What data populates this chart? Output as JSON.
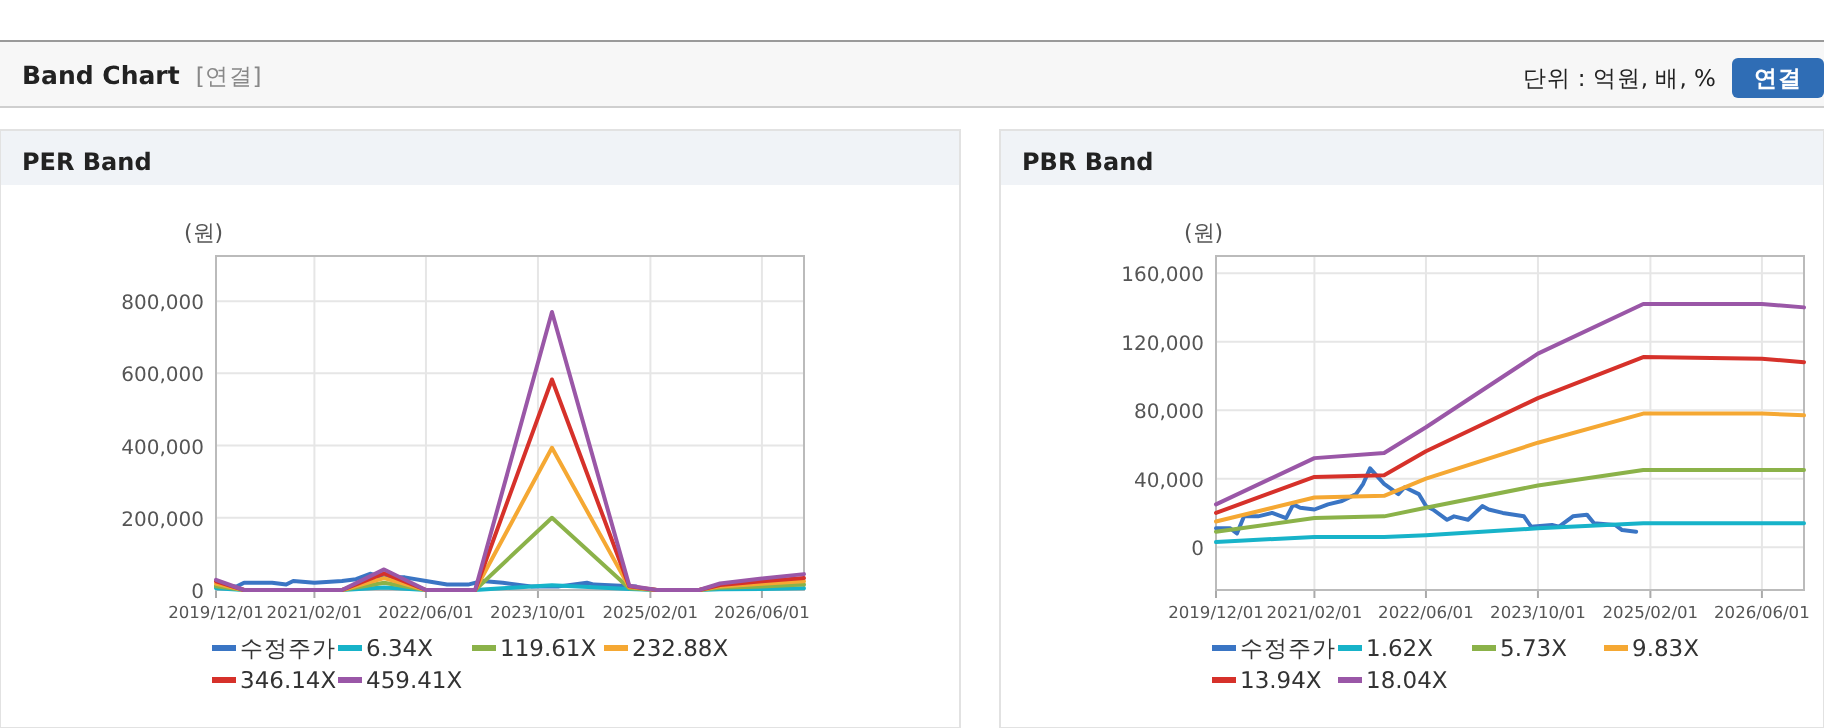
{
  "chart_data": [
    {
      "type": "other",
      "title": "Band Chart",
      "annotations": [
        "[연결]",
        "단위 : 억원, 배, %",
        "연결"
      ]
    },
    {
      "type": "line",
      "title": "PER Band",
      "ylabel": "(원)",
      "grid": true,
      "legend": "bottom",
      "x": [
        "2019-12",
        "2020-04",
        "2020-12",
        "2021-06",
        "2021-12",
        "2022-06",
        "2022-09",
        "2023-01",
        "2023-12",
        "2024-11",
        "2025-03",
        "2025-09",
        "2025-12",
        "2026-06",
        "2026-12"
      ],
      "xlim": [
        "2019-12-01",
        "2026-12-01"
      ],
      "xticks": [
        {
          "value": "2019-12-01",
          "label": "2019/12/01"
        },
        {
          "value": "2021-02-01",
          "label": "2021/02/01"
        },
        {
          "value": "2022-06-01",
          "label": "2022/06/01"
        },
        {
          "value": "2023-10-01",
          "label": "2023/10/01"
        },
        {
          "value": "2025-02-01",
          "label": "2025/02/01"
        },
        {
          "value": "2026-06-01",
          "label": "2026/06/01"
        }
      ],
      "ylim": [
        0,
        925000
      ],
      "yticks": [
        {
          "value": 0,
          "label": "0"
        },
        {
          "value": 200000,
          "label": "200,000"
        },
        {
          "value": 400000,
          "label": "400,000"
        },
        {
          "value": 600000,
          "label": "600,000"
        },
        {
          "value": 800000,
          "label": "800,000"
        }
      ],
      "series": [
        {
          "name": "수정주가",
          "color": "#3a75c4",
          "x": [
            "2019-12",
            "2020-03",
            "2020-04",
            "2020-08",
            "2020-10",
            "2020-11",
            "2021-02",
            "2021-06",
            "2021-08",
            "2021-10",
            "2021-12",
            "2022-03",
            "2022-06",
            "2022-09",
            "2022-12",
            "2023-02",
            "2023-05",
            "2023-09",
            "2024-01",
            "2024-05",
            "2024-06",
            "2024-12"
          ],
          "values": [
            10000,
            10000,
            20000,
            20000,
            15000,
            25000,
            20000,
            25000,
            30000,
            45000,
            35000,
            35000,
            25000,
            15000,
            15000,
            25000,
            20000,
            10000,
            10000,
            20000,
            15000,
            10000
          ]
        },
        {
          "name": "6.34X",
          "color": "#17b3c9",
          "values": [
            5000,
            0,
            0,
            0,
            7000,
            0,
            0,
            0,
            13000,
            3000,
            0,
            0,
            2000,
            3000,
            5000
          ]
        },
        {
          "name": "119.61X",
          "color": "#8bb249",
          "values": [
            10000,
            0,
            0,
            0,
            20000,
            0,
            0,
            0,
            200000,
            5000,
            0,
            0,
            6000,
            10000,
            15000
          ]
        },
        {
          "name": "232.88X",
          "color": "#f5a833",
          "values": [
            17000,
            0,
            0,
            0,
            33000,
            0,
            0,
            0,
            394000,
            8000,
            0,
            0,
            10000,
            17000,
            24000
          ]
        },
        {
          "name": "346.14X",
          "color": "#d6312a",
          "values": [
            24000,
            0,
            0,
            0,
            46000,
            0,
            0,
            0,
            583000,
            10000,
            0,
            0,
            14000,
            24000,
            33000
          ]
        },
        {
          "name": "459.41X",
          "color": "#9a57a7",
          "values": [
            28000,
            0,
            0,
            0,
            57000,
            0,
            0,
            0,
            770000,
            12000,
            0,
            0,
            18000,
            32000,
            44000
          ]
        }
      ]
    },
    {
      "type": "line",
      "title": "PBR Band",
      "ylabel": "(원)",
      "grid": true,
      "legend": "bottom",
      "x": [
        "2019-12",
        "2021-02",
        "2021-12",
        "2022-06",
        "2023-10",
        "2025-01",
        "2026-06",
        "2026-12"
      ],
      "xlim": [
        "2019-12-01",
        "2026-12-01"
      ],
      "xticks": [
        {
          "value": "2019-12-01",
          "label": "2019/12/01"
        },
        {
          "value": "2021-02-01",
          "label": "2021/02/01"
        },
        {
          "value": "2022-06-01",
          "label": "2022/06/01"
        },
        {
          "value": "2023-10-01",
          "label": "2023/10/01"
        },
        {
          "value": "2025-02-01",
          "label": "2025/02/01"
        },
        {
          "value": "2026-06-01",
          "label": "2026/06/01"
        }
      ],
      "ylim": [
        -25000,
        170000
      ],
      "yticks": [
        {
          "value": 0,
          "label": "0"
        },
        {
          "value": 40000,
          "label": "40,000"
        },
        {
          "value": 80000,
          "label": "80,000"
        },
        {
          "value": 120000,
          "label": "120,000"
        },
        {
          "value": 160000,
          "label": "160,000"
        }
      ],
      "series": [
        {
          "name": "수정주가",
          "color": "#3a75c4",
          "x": [
            "2019-12",
            "2020-02",
            "2020-03",
            "2020-04",
            "2020-06",
            "2020-08",
            "2020-10",
            "2020-11",
            "2020-12",
            "2021-02",
            "2021-04",
            "2021-06",
            "2021-08",
            "2021-09",
            "2021-10",
            "2021-12",
            "2022-02",
            "2022-03",
            "2022-05",
            "2022-06",
            "2022-07",
            "2022-09",
            "2022-10",
            "2022-12",
            "2023-02",
            "2023-03",
            "2023-05",
            "2023-08",
            "2023-09",
            "2023-12",
            "2024-01",
            "2024-03",
            "2024-05",
            "2024-06",
            "2024-09",
            "2024-10",
            "2024-12"
          ],
          "values": [
            11000,
            11000,
            8000,
            18000,
            18000,
            20000,
            17000,
            25000,
            23000,
            22000,
            25000,
            27000,
            31000,
            37000,
            46000,
            37000,
            31000,
            35000,
            31000,
            24000,
            22000,
            16000,
            18000,
            16000,
            24000,
            22000,
            20000,
            18000,
            12000,
            13000,
            12000,
            18000,
            19000,
            14000,
            13000,
            10000,
            9000
          ]
        },
        {
          "name": "1.62X",
          "color": "#17b3c9",
          "values": [
            3000,
            6000,
            6000,
            7000,
            11000,
            14000,
            14000,
            14000
          ]
        },
        {
          "name": "5.73X",
          "color": "#8bb249",
          "values": [
            9000,
            17000,
            18000,
            23000,
            36000,
            45000,
            45000,
            45000
          ]
        },
        {
          "name": "9.83X",
          "color": "#f5a833",
          "values": [
            15000,
            29000,
            30000,
            40000,
            61000,
            78000,
            78000,
            77000
          ]
        },
        {
          "name": "13.94X",
          "color": "#d6312a",
          "values": [
            20000,
            41000,
            42000,
            56000,
            87000,
            111000,
            110000,
            108000
          ]
        },
        {
          "name": "18.04X",
          "color": "#9a57a7",
          "values": [
            25000,
            52000,
            55000,
            70000,
            113000,
            142000,
            142000,
            140000
          ]
        }
      ]
    }
  ]
}
